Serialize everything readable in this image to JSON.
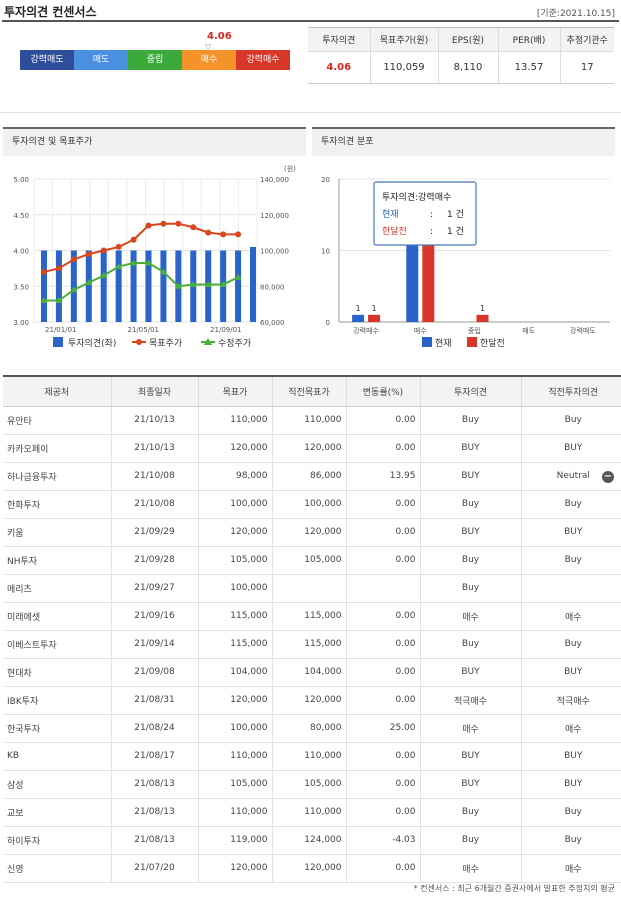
{
  "header": {
    "title": "투자의견 컨센서스",
    "base_date": "[기준:2021.10.15]"
  },
  "scale": {
    "marker_value": "4.06",
    "marker_arrow": "▽",
    "segments": [
      {
        "label": "강력매도",
        "color": "#2e4d9a"
      },
      {
        "label": "매도",
        "color": "#4a8fe0"
      },
      {
        "label": "중립",
        "color": "#3aaa3a"
      },
      {
        "label": "매수",
        "color": "#f5932a"
      },
      {
        "label": "강력매수",
        "color": "#d9362a"
      }
    ]
  },
  "summary": {
    "headers": [
      "투자의견",
      "목표주가(원)",
      "EPS(원)",
      "PER(배)",
      "추정기관수"
    ],
    "values": [
      "4.06",
      "110,059",
      "8,110",
      "13.57",
      "17"
    ]
  },
  "line_chart": {
    "panel_title": "투자의견 및 목표주가",
    "unit": "(원)",
    "legend": [
      "투자의견(좌)",
      "목표주가",
      "수정주가"
    ]
  },
  "dist_chart": {
    "panel_title": "투자의견 분포",
    "tooltip": {
      "title": "투자의견:강력매수",
      "rows": [
        {
          "label": "현재",
          "sep": ":",
          "value": "1 건"
        },
        {
          "label": "한달전",
          "sep": ":",
          "value": "1 건"
        }
      ]
    },
    "legend": [
      "현재",
      "한달전"
    ]
  },
  "chart_data": [
    {
      "type": "bar",
      "title": "투자의견 및 목표주가",
      "xlabel": "",
      "x_ticks": [
        "21/01/01",
        "21/05/01",
        "21/09/01"
      ],
      "y_left_ticks": [
        "5.00",
        "4.50",
        "4.00",
        "3.50",
        "3.00"
      ],
      "y_right_ticks": [
        "140,000",
        "120,000",
        "100,000",
        "80,000",
        "60,000"
      ],
      "ylim_left": [
        3.0,
        5.0
      ],
      "ylim_right": [
        60000,
        140000
      ],
      "series": [
        {
          "name": "투자의견(좌)",
          "type": "bar",
          "axis": "left",
          "color": "#2a64c8",
          "values": [
            4.0,
            4.0,
            4.0,
            4.0,
            4.0,
            4.0,
            4.0,
            4.0,
            4.0,
            4.0,
            4.0,
            4.0,
            4.0,
            4.0,
            4.05
          ]
        },
        {
          "name": "목표주가",
          "type": "line",
          "axis": "right",
          "color": "#d9451d",
          "values": [
            88000,
            90000,
            95000,
            98000,
            100000,
            102000,
            106000,
            114000,
            115000,
            115000,
            113000,
            110000,
            109000,
            109000
          ]
        },
        {
          "name": "수정주가",
          "type": "line",
          "axis": "right",
          "color": "#4bb03a",
          "values": [
            72000,
            72000,
            78000,
            82000,
            86000,
            91000,
            93000,
            93000,
            88000,
            80000,
            81000,
            81000,
            81000,
            85000
          ]
        }
      ],
      "grid": true,
      "legend": "bottom"
    },
    {
      "type": "bar",
      "title": "투자의견 분포",
      "categories": [
        "강력매수",
        "매수",
        "중립",
        "매도",
        "강력매도"
      ],
      "ylim": [
        0,
        20
      ],
      "y_ticks": [
        "20",
        "10",
        "0"
      ],
      "series": [
        {
          "name": "현재",
          "color": "#2a64c8",
          "values": [
            1,
            15,
            0,
            0,
            0
          ],
          "labels": [
            "1",
            "",
            "",
            "",
            ""
          ]
        },
        {
          "name": "한달전",
          "color": "#d9362a",
          "values": [
            1,
            15,
            1,
            0,
            0
          ],
          "labels": [
            "1",
            "",
            "1",
            "",
            ""
          ]
        }
      ],
      "legend": "bottom"
    }
  ],
  "table": {
    "headers": [
      "제공처",
      "최종일자",
      "목표가",
      "직전목표가",
      "변동률(%)",
      "투자의견",
      "직전투자의견"
    ],
    "rows": [
      [
        "유안타",
        "21/10/13",
        "110,000",
        "110,000",
        "0.00",
        "Buy",
        "Buy"
      ],
      [
        "카카오페이",
        "21/10/13",
        "120,000",
        "120,000",
        "0.00",
        "BUY",
        "BUY"
      ],
      [
        "하나금융투자",
        "21/10/08",
        "98,000",
        "86,000",
        "13.95",
        "BUY",
        "Neutral"
      ],
      [
        "한화투자",
        "21/10/08",
        "100,000",
        "100,000",
        "0.00",
        "Buy",
        "Buy"
      ],
      [
        "키움",
        "21/09/29",
        "120,000",
        "120,000",
        "0.00",
        "BUY",
        "BUY"
      ],
      [
        "NH투자",
        "21/09/28",
        "105,000",
        "105,000",
        "0.00",
        "Buy",
        "Buy"
      ],
      [
        "메리츠",
        "21/09/27",
        "100,000",
        "",
        "",
        "Buy",
        ""
      ],
      [
        "미래에셋",
        "21/09/16",
        "115,000",
        "115,000",
        "0.00",
        "매수",
        "매수"
      ],
      [
        "이베스트투자",
        "21/09/14",
        "115,000",
        "115,000",
        "0.00",
        "Buy",
        "Buy"
      ],
      [
        "현대차",
        "21/09/08",
        "104,000",
        "104,000",
        "0.00",
        "BUY",
        "BUY"
      ],
      [
        "IBK투자",
        "21/08/31",
        "120,000",
        "120,000",
        "0.00",
        "적극매수",
        "적극매수"
      ],
      [
        "한국투자",
        "21/08/24",
        "100,000",
        "80,000",
        "25.00",
        "매수",
        "매수"
      ],
      [
        "KB",
        "21/08/17",
        "110,000",
        "110,000",
        "0.00",
        "BUY",
        "BUY"
      ],
      [
        "삼성",
        "21/08/13",
        "105,000",
        "105,000",
        "0.00",
        "BUY",
        "BUY"
      ],
      [
        "교보",
        "21/08/13",
        "110,000",
        "110,000",
        "0.00",
        "Buy",
        "Buy"
      ],
      [
        "하이투자",
        "21/08/13",
        "119,000",
        "124,000",
        "-4.03",
        "Buy",
        "Buy"
      ],
      [
        "신영",
        "21/07/20",
        "120,000",
        "120,000",
        "0.00",
        "매수",
        "매수"
      ]
    ],
    "collapse_icon": "minus-circle-icon"
  },
  "footnote": "* 컨센서스 : 최근 6개월간 증권사에서 발표한 추정치의 평균"
}
